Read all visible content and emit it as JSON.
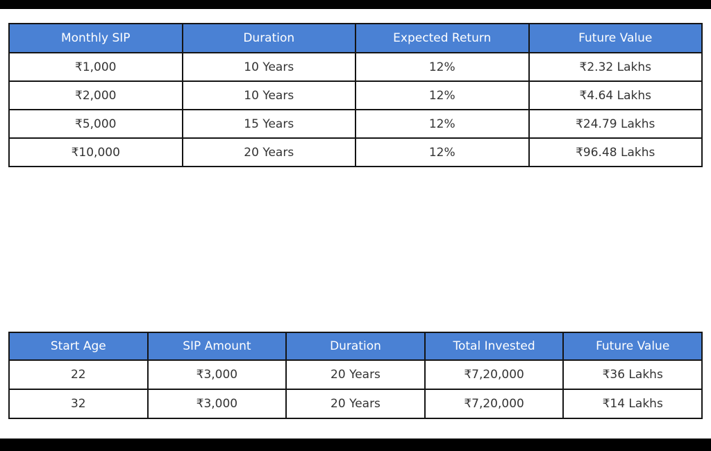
{
  "colors": {
    "header_bg": "#4a81d4",
    "header_text": "#ffffff",
    "body_text": "#333333",
    "border": "#141414",
    "letterbox": "#000000",
    "page_bg": "#ffffff"
  },
  "chart_data": [
    {
      "type": "table",
      "name": "sip-growth-table",
      "columns": [
        "Monthly SIP",
        "Duration",
        "Expected Return",
        "Future Value"
      ],
      "rows": [
        [
          "₹1,000",
          "10 Years",
          "12%",
          "₹2.32 Lakhs"
        ],
        [
          "₹2,000",
          "10 Years",
          "12%",
          "₹4.64 Lakhs"
        ],
        [
          "₹5,000",
          "15 Years",
          "12%",
          "₹24.79 Lakhs"
        ],
        [
          "₹10,000",
          "20 Years",
          "12%",
          "₹96.48 Lakhs"
        ]
      ]
    },
    {
      "type": "table",
      "name": "start-age-comparison-table",
      "columns": [
        "Start Age",
        "SIP Amount",
        "Duration",
        "Total Invested",
        "Future Value"
      ],
      "rows": [
        [
          "22",
          "₹3,000",
          "20 Years",
          "₹7,20,000",
          "₹36 Lakhs"
        ],
        [
          "32",
          "₹3,000",
          "20 Years",
          "₹7,20,000",
          "₹14 Lakhs"
        ]
      ]
    }
  ]
}
